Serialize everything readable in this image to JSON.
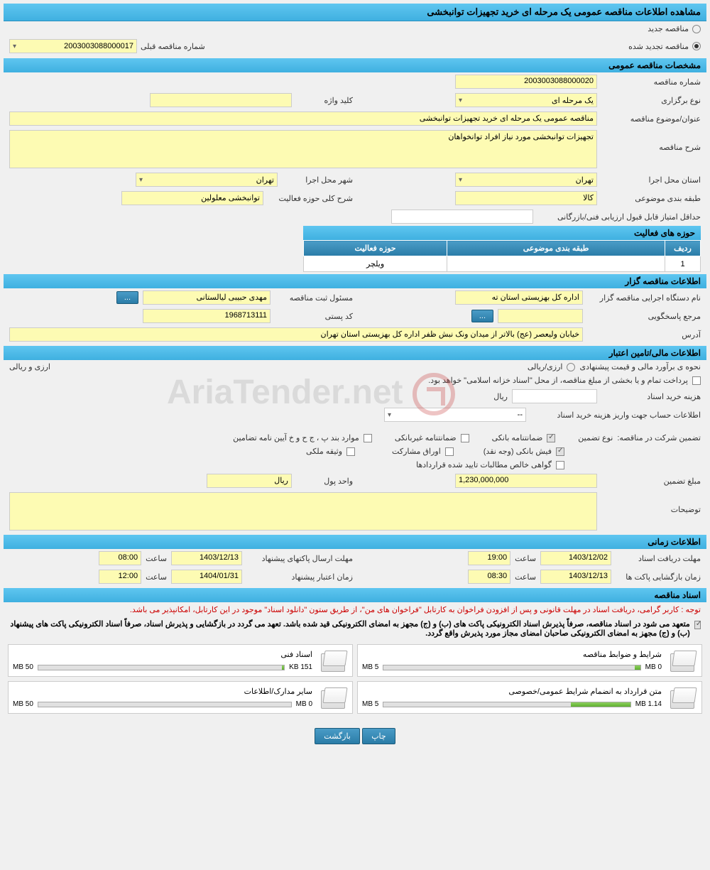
{
  "header": {
    "title": "مشاهده اطلاعات مناقصه عمومی یک مرحله ای خرید تجهیزات توانبخشی"
  },
  "tender_type": {
    "new_label": "مناقصه جدید",
    "renewed_label": "مناقصه تجدید شده",
    "prev_label": "شماره مناقصه قبلی",
    "prev_value": "2003003088000017"
  },
  "sections": {
    "general": "مشخصات مناقصه عمومی",
    "holder": "اطلاعات مناقصه گزار",
    "financial": "اطلاعات مالی/تامین اعتبار",
    "time": "اطلاعات زمانی",
    "docs": "اسناد مناقصه"
  },
  "general": {
    "number_label": "شماره مناقصه",
    "number": "2003003088000020",
    "type_label": "نوع برگزاری",
    "type": "یک مرحله ای",
    "keyword_label": "کلید واژه",
    "keyword": "",
    "subject_label": "عنوان/موضوع مناقصه",
    "subject": "مناقصه عمومی یک مرحله ای خرید تجهیزات توانبخشی",
    "desc_label": "شرح مناقصه",
    "desc": "تجهیزات توانبخشی مورد نیاز افراد توانخواهان",
    "province_label": "استان محل اجرا",
    "province": "تهران",
    "city_label": "شهر محل اجرا",
    "city": "تهران",
    "category_label": "طبقه بندی موضوعی",
    "category": "کالا",
    "activity_desc_label": "شرح کلی حوزه فعالیت",
    "activity_desc": "توانبخشی معلولین",
    "min_score_label": "حداقل امتیاز قابل قبول ارزیابی فنی/بازرگانی",
    "min_score": "",
    "activity_header": "حوزه های فعالیت",
    "table": {
      "col_row": "ردیف",
      "col_category": "طبقه بندی موضوعی",
      "col_activity": "حوزه فعالیت",
      "rows": [
        {
          "n": "1",
          "category": "",
          "activity": "ویلچر"
        }
      ]
    }
  },
  "holder": {
    "org_label": "نام دستگاه اجرایی مناقصه گزار",
    "org": "اداره کل بهزیستی استان ته",
    "manager_label": "مسئول ثبت مناقصه",
    "manager": "مهدی حبیبی لیالستانی",
    "ref_label": "مرجع پاسخگویی",
    "ref": "",
    "postal_label": "کد پستی",
    "postal": "1968713111",
    "address_label": "آدرس",
    "address": "خیابان ولیعصر (عج) بالاتر از میدان ونک نبش ظفر اداره کل بهزیستی استان تهران",
    "btn_ellipsis": "..."
  },
  "financial": {
    "estimate_label": "نحوه ی برآورد مالی و قیمت پیشنهادی",
    "estimate_radio": "ارزی/ریالی",
    "currency_label": "ارزی و ریالی",
    "note": "پرداخت تمام و یا بخشی از مبلغ مناقصه، از محل \"اسناد خزانه اسلامی\" خواهد بود.",
    "doc_cost_label": "هزینه خرید اسناد",
    "doc_cost": "",
    "doc_cost_unit": "ریال",
    "payment_info_label": "اطلاعات حساب جهت واریز هزینه خرید اسناد",
    "payment_info": "--",
    "guarantee_label": "تضمین شرکت در مناقصه:",
    "guarantee_type_label": "نوع تضمین",
    "checks": {
      "bank_guarantee": "ضمانتنامه بانکی",
      "nonbank_guarantee": "ضمانتنامه غیربانکی",
      "clause": "موارد بند پ ، ج ح و خ آیین نامه تضامین",
      "bank_slip": "فیش بانکی (وجه نقد)",
      "participation": "اوراق مشارکت",
      "property": "وثیقه ملکی",
      "contract_cert": "گواهی خالص مطالبات تایید شده قراردادها"
    },
    "amount_label": "مبلغ تضمین",
    "amount": "1,230,000,000",
    "unit_label": "واحد پول",
    "unit": "ریال",
    "notes_label": "توضیحات"
  },
  "time": {
    "doc_deadline_label": "مهلت دریافت اسناد",
    "doc_deadline_date": "1403/12/02",
    "doc_deadline_time": "19:00",
    "offer_deadline_label": "مهلت ارسال پاکتهای پیشنهاد",
    "offer_deadline_date": "1403/12/13",
    "offer_deadline_time": "08:00",
    "opening_label": "زمان بازگشایی پاکت ها",
    "opening_date": "1403/12/13",
    "opening_time": "08:30",
    "validity_label": "زمان اعتبار پیشنهاد",
    "validity_date": "1404/01/31",
    "validity_time": "12:00",
    "hour_label": "ساعت"
  },
  "docs": {
    "note_red": "توجه : کاربر گرامی، دریافت اسناد در مهلت قانونی و پس از افزودن فراخوان به کارتابل \"فراخوان های من\"، از طریق ستون \"دانلود اسناد\" موجود در این کارتابل، امکانپذیر می باشد.",
    "note1": "متعهد می شود در اسناد مناقصه، صرفاً پذیرش اسناد الکترونیکی پاکت های (ب) و (ج) مجهز به امضای الکترونیکی قید شده باشد. تعهد می گردد در بازگشایی و پذیرش اسناد، صرفاً اسناد الکترونیکی پاکت های پیشنهاد (ب) و (ج) مجهز به امضای الکترونیکی صاحبان امضای مجاز مورد پذیرش واقع گردد.",
    "files": [
      {
        "title": "شرایط و ضوابط مناقصه",
        "used": "0 MB",
        "total": "5 MB",
        "pct": 2
      },
      {
        "title": "اسناد فنی",
        "used": "151 KB",
        "total": "50 MB",
        "pct": 1
      },
      {
        "title": "متن قرارداد به انضمام شرایط عمومی/خصوصی",
        "used": "1.14 MB",
        "total": "5 MB",
        "pct": 24
      },
      {
        "title": "سایر مدارک/اطلاعات",
        "used": "0 MB",
        "total": "50 MB",
        "pct": 0
      }
    ]
  },
  "buttons": {
    "print": "چاپ",
    "back": "بازگشت"
  },
  "watermark": "AriaTender.net",
  "colors": {
    "header_bg": "#5fc6f0",
    "field_bg": "#fdfbb3",
    "btn_bg": "#2a7ca7"
  }
}
